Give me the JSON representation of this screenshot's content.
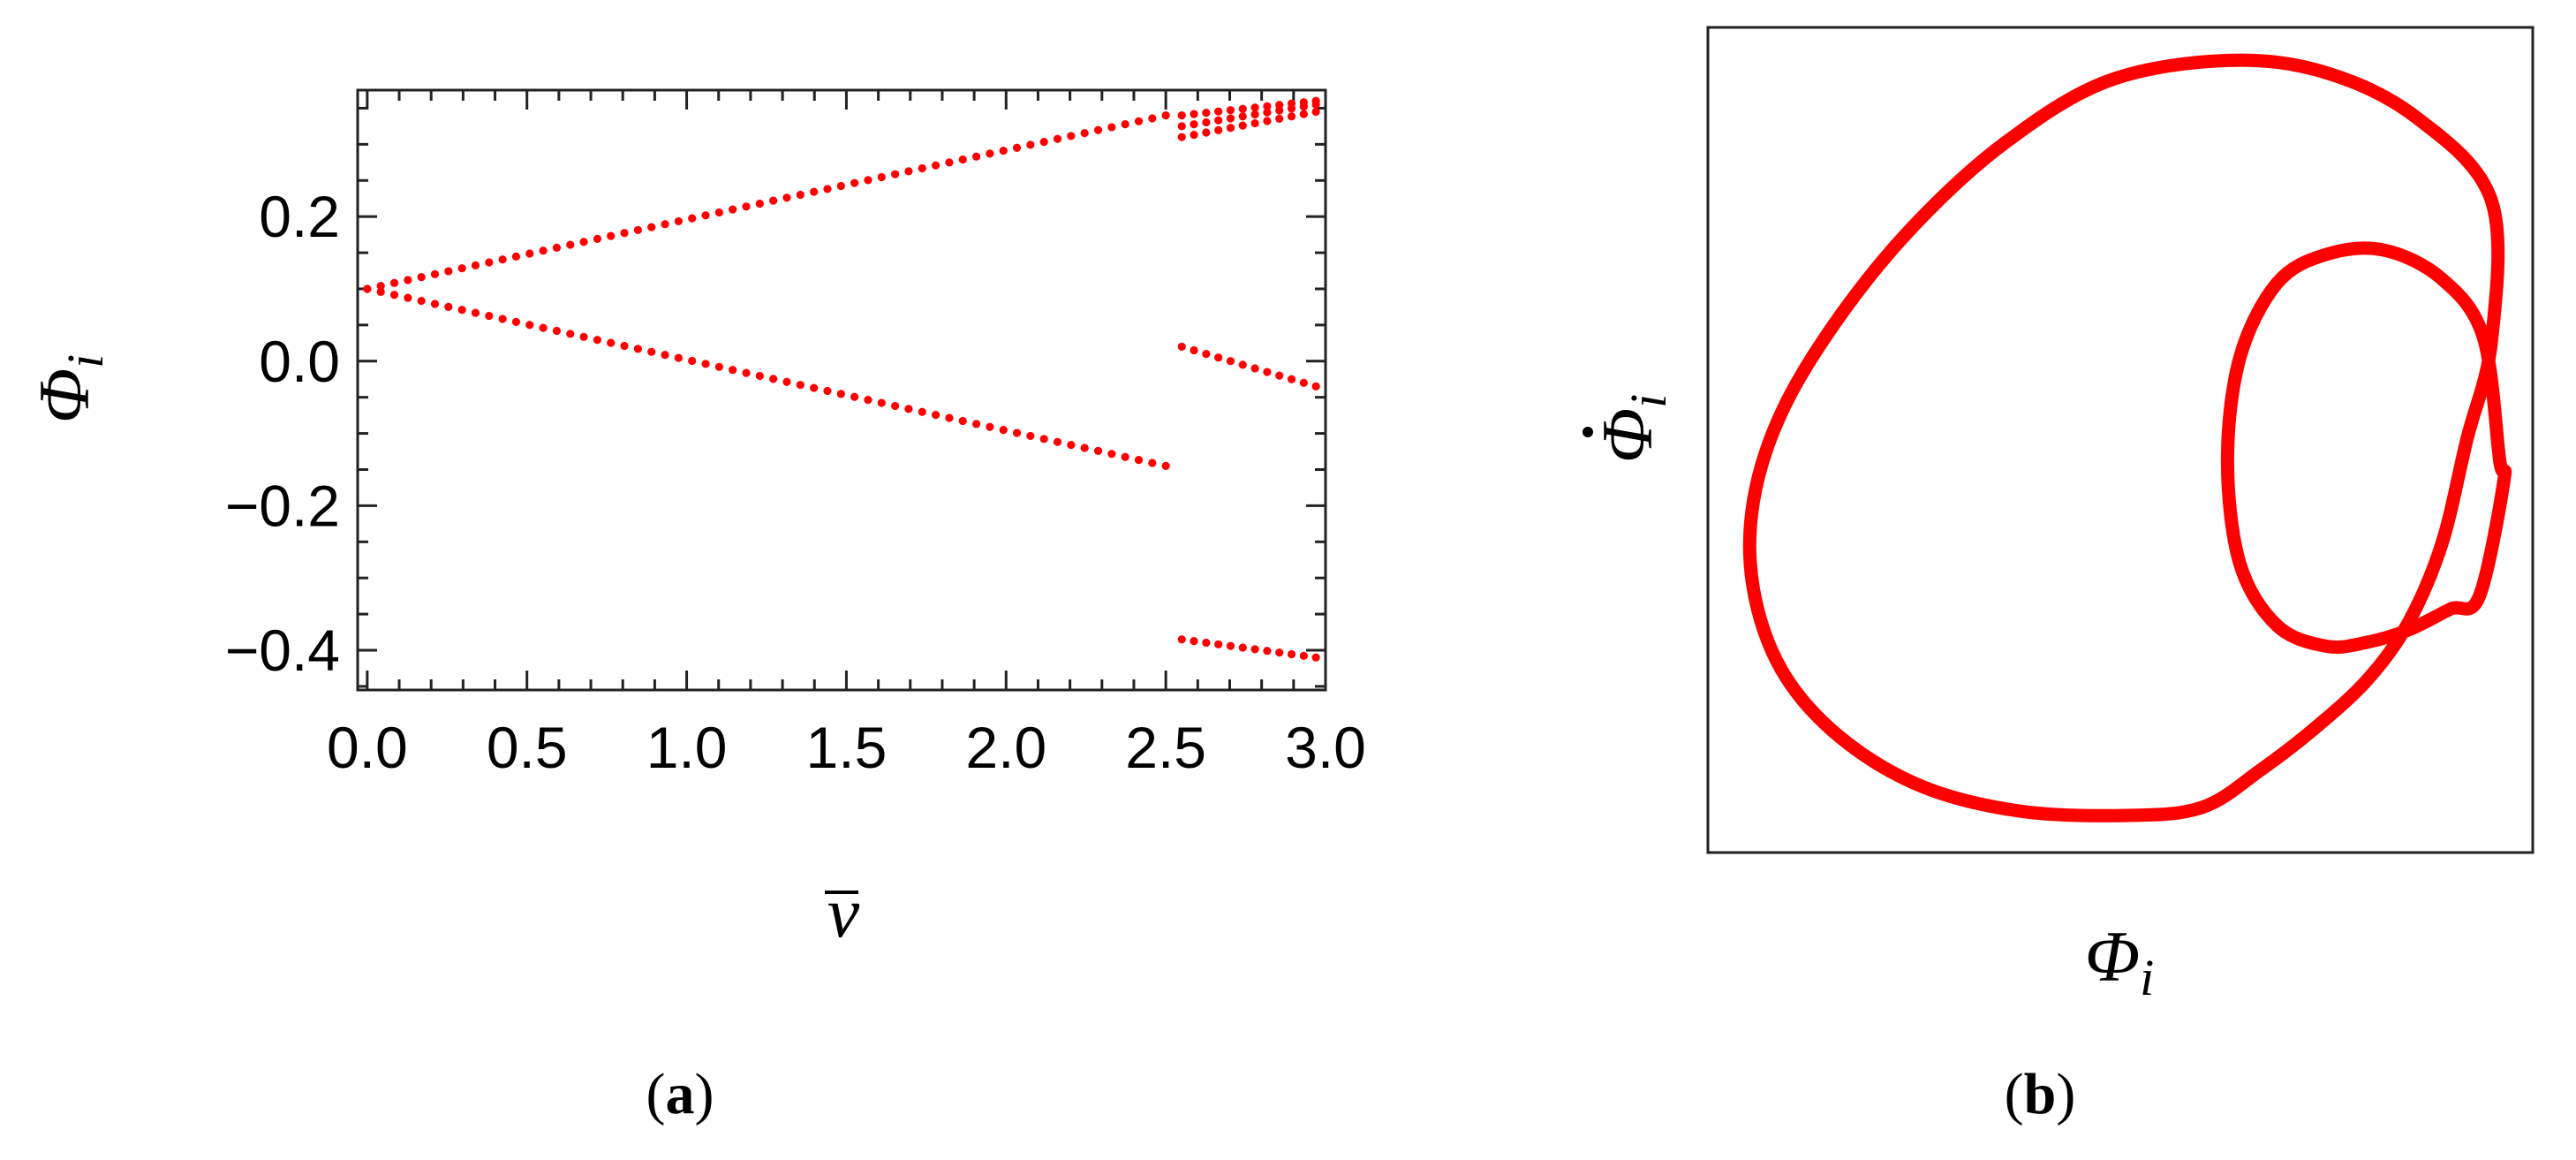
{
  "chart_data": [
    {
      "panel": "a",
      "type": "scatter",
      "title": "",
      "xlabel": "v",
      "xlabel_overbar": true,
      "ylabel": "Φ",
      "ylabel_subscript": "i",
      "xlim": [
        -0.03,
        3.0
      ],
      "ylim": [
        -0.455,
        0.375
      ],
      "xticks": [
        0.0,
        0.5,
        1.0,
        1.5,
        2.0,
        2.5,
        3.0
      ],
      "xtick_labels": [
        "0.0",
        "0.5",
        "1.0",
        "1.5",
        "2.0",
        "2.5",
        "3.0"
      ],
      "yticks": [
        -0.4,
        -0.2,
        0.0,
        0.2
      ],
      "ytick_labels": [
        "−0.4",
        "−0.2",
        "0.0",
        "0.2"
      ],
      "grid": false,
      "point_color": "#ff0000",
      "series": [
        {
          "x": [
            0.0,
            2.5
          ],
          "y": [
            0.1,
            0.34
          ],
          "point_count": 60
        },
        {
          "x": [
            0.0,
            2.5
          ],
          "y": [
            0.1,
            -0.145
          ],
          "point_count": 60
        },
        {
          "x": [
            2.55,
            2.97
          ],
          "y": [
            0.34,
            0.36
          ],
          "point_count": 12
        },
        {
          "x": [
            2.55,
            2.97
          ],
          "y": [
            0.325,
            0.355
          ],
          "point_count": 12
        },
        {
          "x": [
            2.55,
            2.97
          ],
          "y": [
            0.31,
            0.345
          ],
          "point_count": 12
        },
        {
          "x": [
            2.55,
            2.97
          ],
          "y": [
            0.02,
            -0.035
          ],
          "point_count": 12
        },
        {
          "x": [
            2.55,
            2.97
          ],
          "y": [
            -0.385,
            -0.41
          ],
          "point_count": 12
        }
      ],
      "panel_label": "a"
    },
    {
      "panel": "b",
      "type": "line",
      "title": "",
      "xlabel": "Φ",
      "xlabel_subscript": "i",
      "ylabel": "Φ",
      "ylabel_dot": true,
      "ylabel_subscript": "i",
      "xlim": [
        -1.0,
        1.0
      ],
      "ylim": [
        -1.0,
        1.0
      ],
      "ticks_visible": false,
      "grid": false,
      "line_color": "#ff0000",
      "curves": [
        {
          "name": "",
          "x": [
            0.9,
            0.72,
            0.5,
            0.26,
            -0.03,
            -0.28,
            -0.5,
            -0.68,
            -0.82,
            -0.89,
            -0.89,
            -0.82,
            -0.68,
            -0.48,
            -0.24,
            0.02,
            0.2,
            0.34,
            0.47,
            0.6,
            0.7,
            0.78,
            0.84,
            0.9
          ],
          "y": [
            0.58,
            0.78,
            0.89,
            0.92,
            0.87,
            0.72,
            0.52,
            0.3,
            0.07,
            -0.15,
            -0.36,
            -0.56,
            -0.72,
            -0.84,
            -0.9,
            -0.91,
            -0.89,
            -0.8,
            -0.7,
            -0.58,
            -0.44,
            -0.25,
            0.0,
            0.24
          ]
        },
        {
          "name": "",
          "x": [
            0.92,
            0.88,
            0.78,
            0.64,
            0.5,
            0.38,
            0.29,
            0.26,
            0.29,
            0.38,
            0.5,
            0.6,
            0.7,
            0.8,
            0.87,
            0.93
          ],
          "y": [
            -0.05,
            0.25,
            0.39,
            0.46,
            0.45,
            0.38,
            0.2,
            -0.05,
            -0.3,
            -0.45,
            -0.5,
            -0.49,
            -0.46,
            -0.41,
            -0.38,
            -0.1
          ]
        }
      ],
      "panel_label": "b"
    }
  ]
}
